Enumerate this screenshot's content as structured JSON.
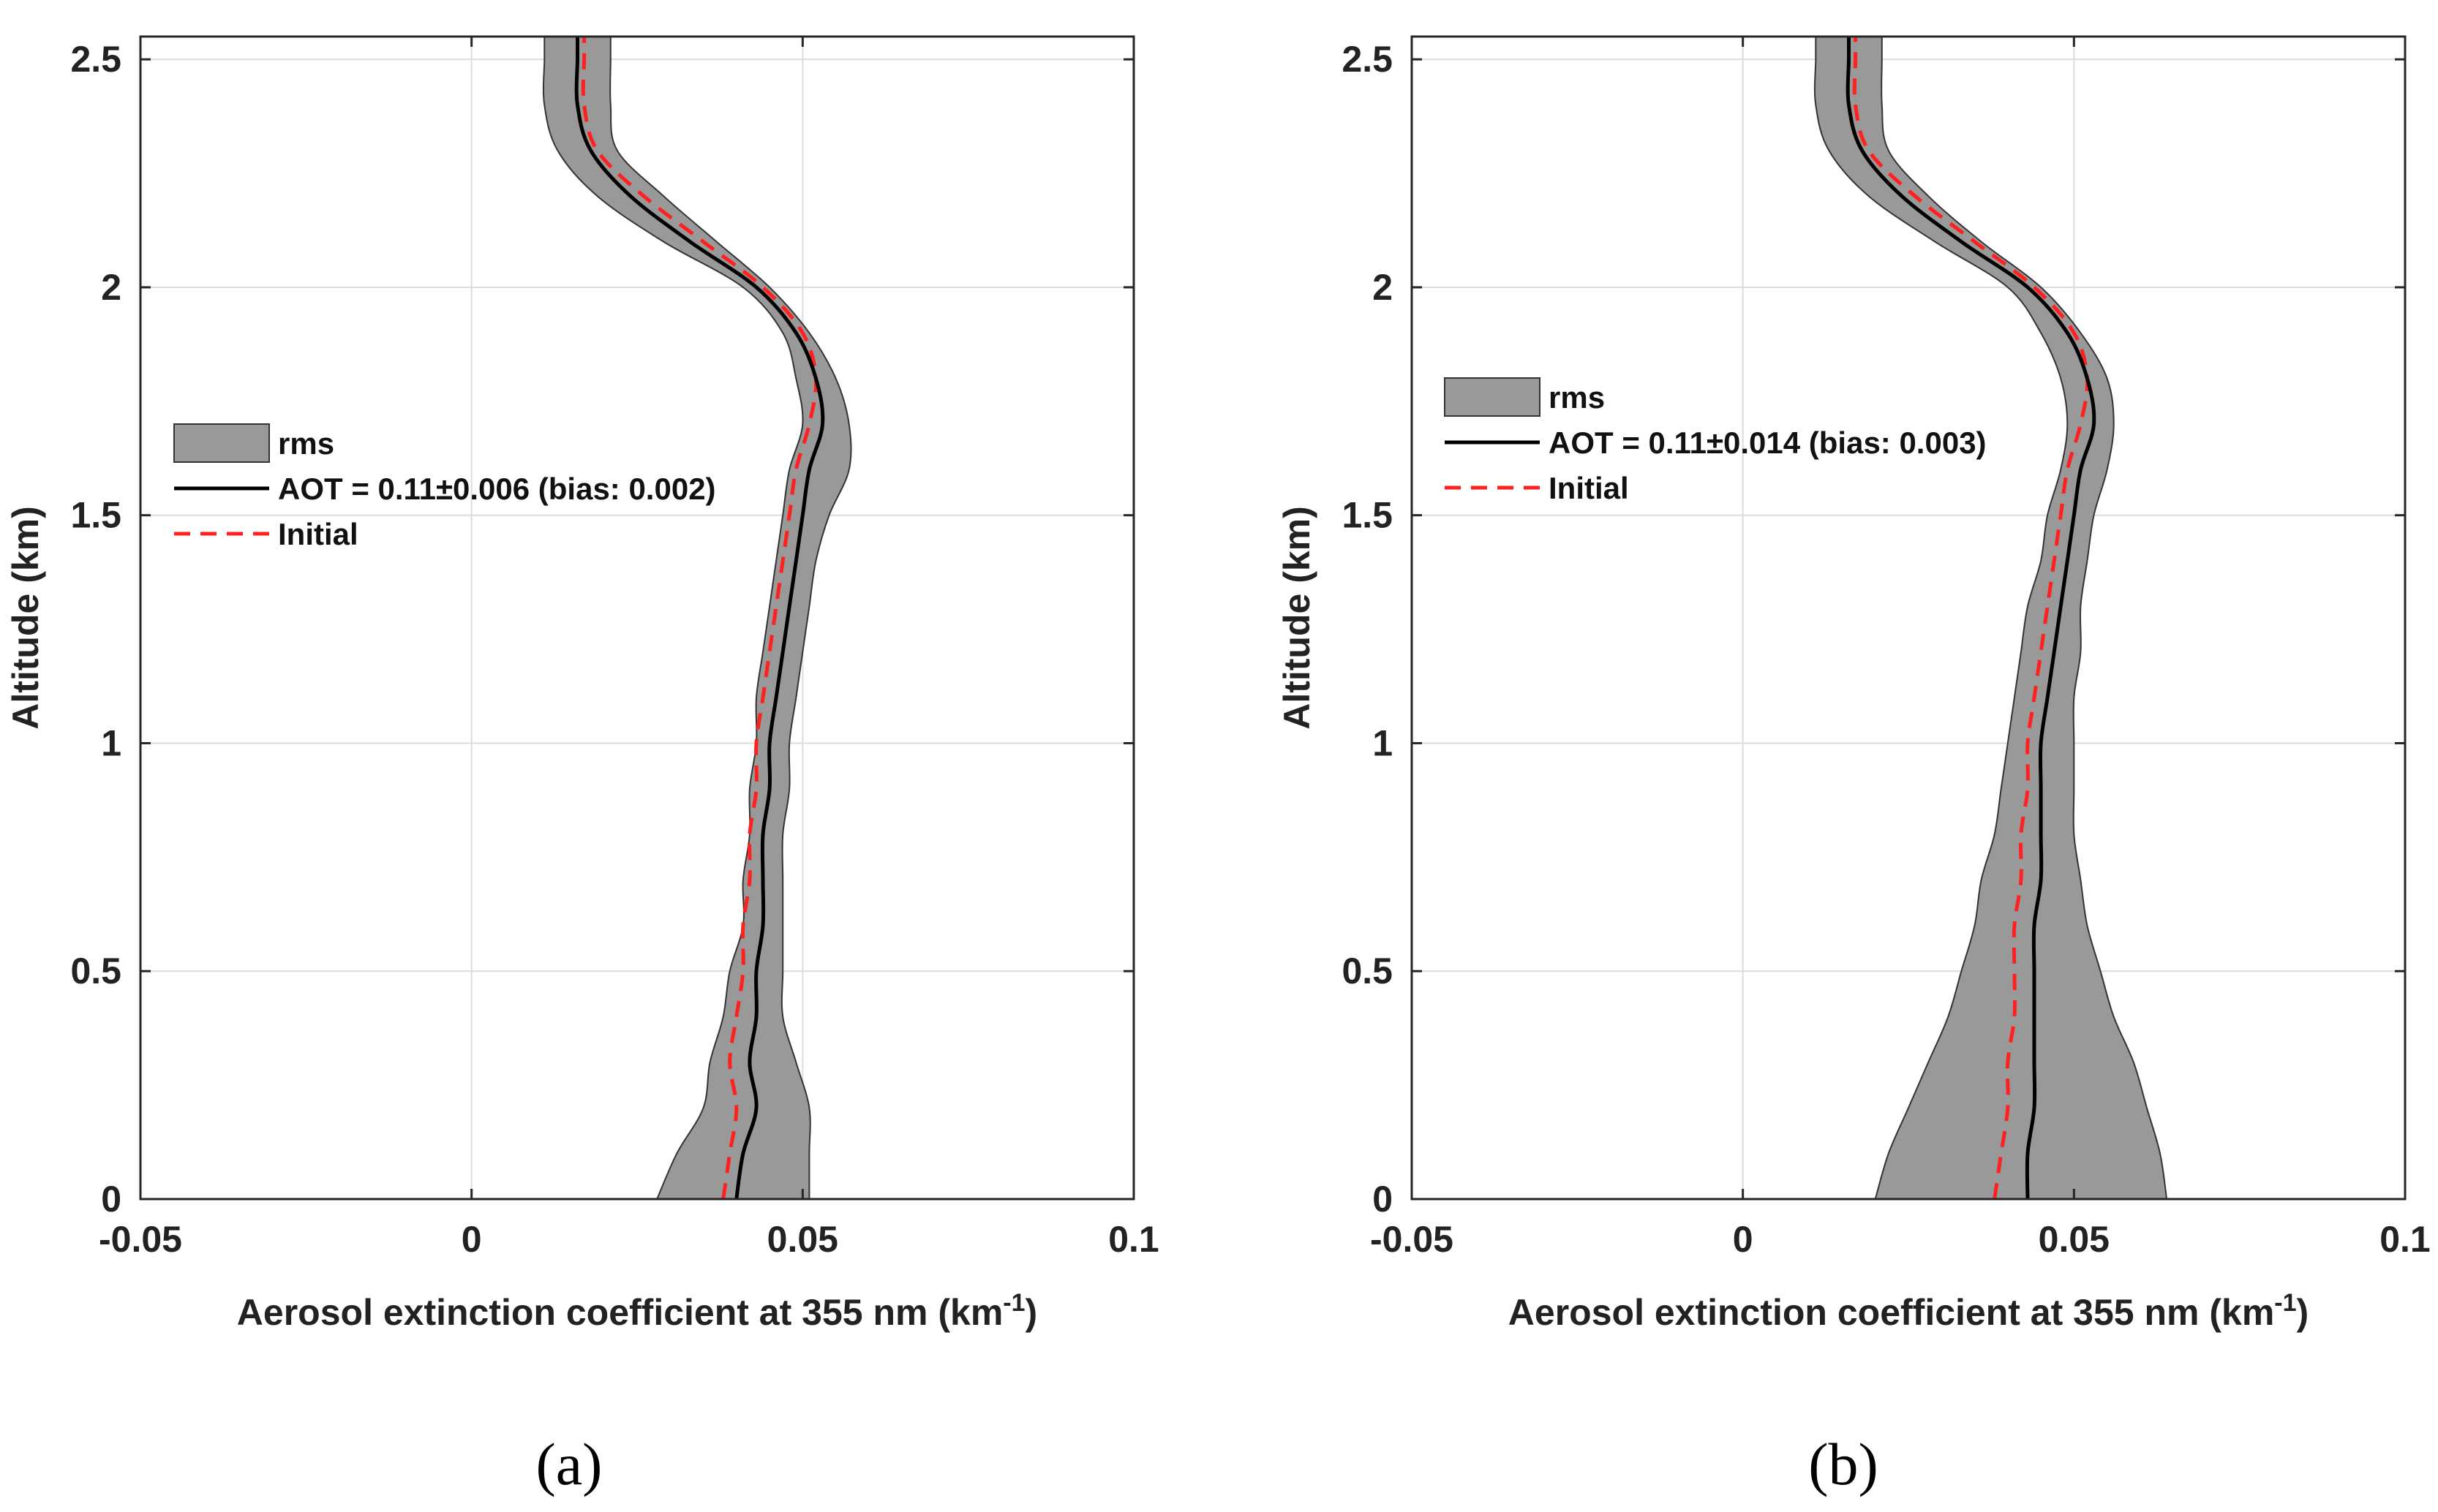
{
  "colors": {
    "band_fill": "#999999",
    "band_edge": "#333333",
    "retrieved": "#000000",
    "initial": "#ff2020",
    "grid": "#dcdcdc",
    "axes": "#262626"
  },
  "chart_data": [
    {
      "panel": "(a)",
      "type": "line",
      "xlabel": "Aerosol extinction coefficient at 355 nm (km",
      "xlabel_sup": "-1",
      "xlabel_end": ")",
      "ylabel": "Altitude (km)",
      "xlim": [
        -0.05,
        0.1
      ],
      "ylim": [
        0,
        2.55
      ],
      "xticks": [
        -0.05,
        0,
        0.05,
        0.1
      ],
      "xtick_labels": [
        "-0.05",
        "0",
        "0.05",
        "0.1"
      ],
      "yticks": [
        0,
        0.5,
        1,
        1.5,
        2,
        2.5
      ],
      "ytick_labels": [
        "0",
        "0.5",
        "1",
        "1.5",
        "2",
        "2.5"
      ],
      "grid": true,
      "legend": {
        "placement": "middle-left",
        "entries": [
          {
            "kind": "band",
            "label": "rms"
          },
          {
            "kind": "solid",
            "label": "AOT = 0.11±0.006 (bias: 0.002)"
          },
          {
            "kind": "dashed",
            "label": "Initial"
          }
        ]
      },
      "series": [
        {
          "name": "Initial",
          "style": "dashed",
          "points": [
            [
              0.038,
              0
            ],
            [
              0.039,
              0.1
            ],
            [
              0.04,
              0.2
            ],
            [
              0.039,
              0.3
            ],
            [
              0.04,
              0.4
            ],
            [
              0.041,
              0.5
            ],
            [
              0.041,
              0.6
            ],
            [
              0.042,
              0.7
            ],
            [
              0.042,
              0.8
            ],
            [
              0.043,
              0.9
            ],
            [
              0.043,
              1.0
            ],
            [
              0.044,
              1.1
            ],
            [
              0.045,
              1.2
            ],
            [
              0.046,
              1.3
            ],
            [
              0.047,
              1.4
            ],
            [
              0.048,
              1.5
            ],
            [
              0.049,
              1.6
            ],
            [
              0.051,
              1.7
            ],
            [
              0.052,
              1.8
            ],
            [
              0.05,
              1.9
            ],
            [
              0.044,
              2.0
            ],
            [
              0.035,
              2.1
            ],
            [
              0.026,
              2.2
            ],
            [
              0.019,
              2.3
            ],
            [
              0.017,
              2.4
            ],
            [
              0.017,
              2.5
            ],
            [
              0.017,
              2.55
            ]
          ]
        },
        {
          "name": "AOT = 0.11±0.006 (bias: 0.002)",
          "style": "solid",
          "points": [
            [
              0.04,
              0
            ],
            [
              0.041,
              0.1
            ],
            [
              0.043,
              0.2
            ],
            [
              0.042,
              0.3
            ],
            [
              0.043,
              0.4
            ],
            [
              0.043,
              0.5
            ],
            [
              0.044,
              0.6
            ],
            [
              0.044,
              0.7
            ],
            [
              0.044,
              0.8
            ],
            [
              0.045,
              0.9
            ],
            [
              0.045,
              1.0
            ],
            [
              0.046,
              1.1
            ],
            [
              0.047,
              1.2
            ],
            [
              0.048,
              1.3
            ],
            [
              0.049,
              1.4
            ],
            [
              0.05,
              1.5
            ],
            [
              0.051,
              1.6
            ],
            [
              0.053,
              1.7
            ],
            [
              0.052,
              1.8
            ],
            [
              0.049,
              1.9
            ],
            [
              0.043,
              2.0
            ],
            [
              0.033,
              2.1
            ],
            [
              0.024,
              2.2
            ],
            [
              0.018,
              2.3
            ],
            [
              0.016,
              2.4
            ],
            [
              0.016,
              2.5
            ],
            [
              0.016,
              2.55
            ]
          ]
        },
        {
          "name": "rms",
          "style": "band",
          "upper": [
            [
              0.051,
              0
            ],
            [
              0.051,
              0.1
            ],
            [
              0.051,
              0.2
            ],
            [
              0.049,
              0.3
            ],
            [
              0.047,
              0.4
            ],
            [
              0.047,
              0.5
            ],
            [
              0.047,
              0.6
            ],
            [
              0.047,
              0.7
            ],
            [
              0.047,
              0.8
            ],
            [
              0.048,
              0.9
            ],
            [
              0.048,
              1.0
            ],
            [
              0.049,
              1.1
            ],
            [
              0.05,
              1.2
            ],
            [
              0.051,
              1.3
            ],
            [
              0.052,
              1.4
            ],
            [
              0.054,
              1.5
            ],
            [
              0.057,
              1.6
            ],
            [
              0.057,
              1.7
            ],
            [
              0.055,
              1.8
            ],
            [
              0.051,
              1.9
            ],
            [
              0.045,
              2.0
            ],
            [
              0.037,
              2.1
            ],
            [
              0.029,
              2.2
            ],
            [
              0.022,
              2.3
            ],
            [
              0.021,
              2.4
            ],
            [
              0.021,
              2.5
            ],
            [
              0.021,
              2.55
            ]
          ],
          "lower": [
            [
              0.028,
              0
            ],
            [
              0.031,
              0.1
            ],
            [
              0.035,
              0.2
            ],
            [
              0.036,
              0.3
            ],
            [
              0.038,
              0.4
            ],
            [
              0.039,
              0.5
            ],
            [
              0.041,
              0.6
            ],
            [
              0.041,
              0.7
            ],
            [
              0.042,
              0.8
            ],
            [
              0.042,
              0.9
            ],
            [
              0.043,
              1.0
            ],
            [
              0.043,
              1.1
            ],
            [
              0.044,
              1.2
            ],
            [
              0.045,
              1.3
            ],
            [
              0.046,
              1.4
            ],
            [
              0.047,
              1.5
            ],
            [
              0.048,
              1.6
            ],
            [
              0.05,
              1.7
            ],
            [
              0.049,
              1.8
            ],
            [
              0.047,
              1.9
            ],
            [
              0.041,
              2.0
            ],
            [
              0.029,
              2.1
            ],
            [
              0.019,
              2.2
            ],
            [
              0.013,
              2.3
            ],
            [
              0.011,
              2.4
            ],
            [
              0.011,
              2.5
            ],
            [
              0.011,
              2.55
            ]
          ]
        }
      ]
    },
    {
      "panel": "(b)",
      "type": "line",
      "xlabel": "Aerosol extinction coefficient at 355 nm (km",
      "xlabel_sup": "-1",
      "xlabel_end": ")",
      "ylabel": "Altitude (km)",
      "xlim": [
        -0.05,
        0.1
      ],
      "ylim": [
        0,
        2.55
      ],
      "xticks": [
        -0.05,
        0,
        0.05,
        0.1
      ],
      "xtick_labels": [
        "-0.05",
        "0",
        "0.05",
        "0.1"
      ],
      "yticks": [
        0,
        0.5,
        1,
        1.5,
        2,
        2.5
      ],
      "ytick_labels": [
        "0",
        "0.5",
        "1",
        "1.5",
        "2",
        "2.5"
      ],
      "grid": true,
      "legend": {
        "placement": "upper-left",
        "entries": [
          {
            "kind": "band",
            "label": "rms"
          },
          {
            "kind": "solid",
            "label": "AOT = 0.11±0.014 (bias: 0.003)"
          },
          {
            "kind": "dashed",
            "label": "Initial"
          }
        ]
      },
      "series": [
        {
          "name": "Initial",
          "style": "dashed",
          "points": [
            [
              0.038,
              0
            ],
            [
              0.039,
              0.1
            ],
            [
              0.04,
              0.2
            ],
            [
              0.04,
              0.3
            ],
            [
              0.041,
              0.4
            ],
            [
              0.041,
              0.5
            ],
            [
              0.041,
              0.6
            ],
            [
              0.042,
              0.7
            ],
            [
              0.042,
              0.8
            ],
            [
              0.043,
              0.9
            ],
            [
              0.043,
              1.0
            ],
            [
              0.044,
              1.1
            ],
            [
              0.045,
              1.2
            ],
            [
              0.046,
              1.3
            ],
            [
              0.047,
              1.4
            ],
            [
              0.048,
              1.5
            ],
            [
              0.049,
              1.6
            ],
            [
              0.051,
              1.7
            ],
            [
              0.052,
              1.8
            ],
            [
              0.05,
              1.9
            ],
            [
              0.044,
              2.0
            ],
            [
              0.035,
              2.1
            ],
            [
              0.026,
              2.2
            ],
            [
              0.019,
              2.3
            ],
            [
              0.017,
              2.4
            ],
            [
              0.017,
              2.5
            ],
            [
              0.017,
              2.55
            ]
          ]
        },
        {
          "name": "AOT = 0.11±0.014 (bias: 0.003)",
          "style": "solid",
          "points": [
            [
              0.043,
              0
            ],
            [
              0.043,
              0.1
            ],
            [
              0.044,
              0.2
            ],
            [
              0.044,
              0.3
            ],
            [
              0.044,
              0.4
            ],
            [
              0.044,
              0.5
            ],
            [
              0.044,
              0.6
            ],
            [
              0.045,
              0.7
            ],
            [
              0.045,
              0.8
            ],
            [
              0.045,
              0.9
            ],
            [
              0.045,
              1.0
            ],
            [
              0.046,
              1.1
            ],
            [
              0.047,
              1.2
            ],
            [
              0.048,
              1.3
            ],
            [
              0.049,
              1.4
            ],
            [
              0.05,
              1.5
            ],
            [
              0.051,
              1.6
            ],
            [
              0.053,
              1.7
            ],
            [
              0.052,
              1.8
            ],
            [
              0.049,
              1.9
            ],
            [
              0.043,
              2.0
            ],
            [
              0.033,
              2.1
            ],
            [
              0.024,
              2.2
            ],
            [
              0.018,
              2.3
            ],
            [
              0.016,
              2.4
            ],
            [
              0.016,
              2.5
            ],
            [
              0.016,
              2.55
            ]
          ]
        },
        {
          "name": "rms",
          "style": "band",
          "upper": [
            [
              0.064,
              0
            ],
            [
              0.063,
              0.1
            ],
            [
              0.061,
              0.2
            ],
            [
              0.059,
              0.3
            ],
            [
              0.056,
              0.4
            ],
            [
              0.054,
              0.5
            ],
            [
              0.052,
              0.6
            ],
            [
              0.051,
              0.7
            ],
            [
              0.05,
              0.8
            ],
            [
              0.05,
              0.9
            ],
            [
              0.05,
              1.0
            ],
            [
              0.05,
              1.1
            ],
            [
              0.051,
              1.2
            ],
            [
              0.051,
              1.3
            ],
            [
              0.052,
              1.4
            ],
            [
              0.053,
              1.5
            ],
            [
              0.055,
              1.6
            ],
            [
              0.056,
              1.7
            ],
            [
              0.055,
              1.8
            ],
            [
              0.051,
              1.9
            ],
            [
              0.045,
              2.0
            ],
            [
              0.036,
              2.1
            ],
            [
              0.028,
              2.2
            ],
            [
              0.022,
              2.3
            ],
            [
              0.021,
              2.4
            ],
            [
              0.021,
              2.5
            ],
            [
              0.021,
              2.55
            ]
          ],
          "lower": [
            [
              0.02,
              0
            ],
            [
              0.022,
              0.1
            ],
            [
              0.025,
              0.2
            ],
            [
              0.028,
              0.3
            ],
            [
              0.031,
              0.4
            ],
            [
              0.033,
              0.5
            ],
            [
              0.035,
              0.6
            ],
            [
              0.036,
              0.7
            ],
            [
              0.038,
              0.8
            ],
            [
              0.039,
              0.9
            ],
            [
              0.04,
              1.0
            ],
            [
              0.041,
              1.1
            ],
            [
              0.042,
              1.2
            ],
            [
              0.043,
              1.3
            ],
            [
              0.045,
              1.4
            ],
            [
              0.046,
              1.5
            ],
            [
              0.048,
              1.6
            ],
            [
              0.049,
              1.7
            ],
            [
              0.048,
              1.8
            ],
            [
              0.045,
              1.9
            ],
            [
              0.04,
              2.0
            ],
            [
              0.029,
              2.1
            ],
            [
              0.019,
              2.2
            ],
            [
              0.013,
              2.3
            ],
            [
              0.011,
              2.4
            ],
            [
              0.011,
              2.5
            ],
            [
              0.011,
              2.55
            ]
          ]
        }
      ]
    }
  ]
}
